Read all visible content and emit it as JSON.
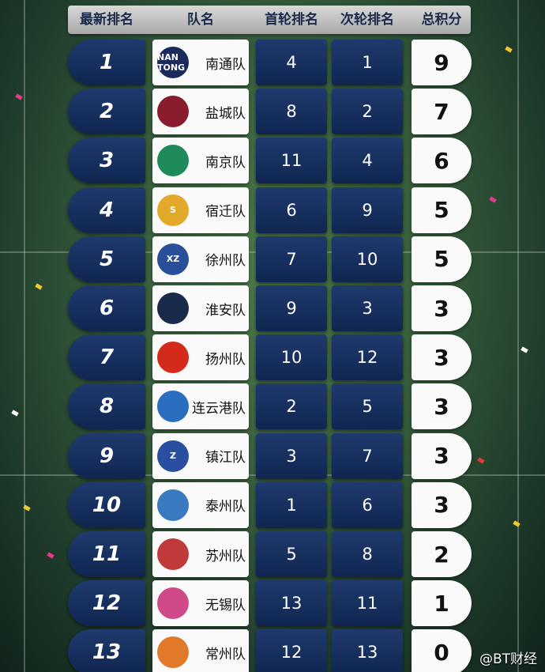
{
  "header": {
    "rank": "最新排名",
    "team": "队名",
    "round1": "首轮排名",
    "round2": "次轮排名",
    "points": "总积分"
  },
  "rows": [
    {
      "rank": "1",
      "team": "南通队",
      "round1": "4",
      "round2": "1",
      "points": "9",
      "logo_color": "#1a2a5c",
      "logo_text": "NAN TONG"
    },
    {
      "rank": "2",
      "team": "盐城队",
      "round1": "8",
      "round2": "2",
      "points": "7",
      "logo_color": "#8a1c2e",
      "logo_text": ""
    },
    {
      "rank": "3",
      "team": "南京队",
      "round1": "11",
      "round2": "4",
      "points": "6",
      "logo_color": "#1f8a5a",
      "logo_text": ""
    },
    {
      "rank": "4",
      "team": "宿迁队",
      "round1": "6",
      "round2": "9",
      "points": "5",
      "logo_color": "#e2a92b",
      "logo_text": "S"
    },
    {
      "rank": "5",
      "team": "徐州队",
      "round1": "7",
      "round2": "10",
      "points": "5",
      "logo_color": "#2a4f9a",
      "logo_text": "XZ"
    },
    {
      "rank": "6",
      "team": "淮安队",
      "round1": "9",
      "round2": "3",
      "points": "3",
      "logo_color": "#1a2a4a",
      "logo_text": ""
    },
    {
      "rank": "7",
      "team": "扬州队",
      "round1": "10",
      "round2": "12",
      "points": "3",
      "logo_color": "#d42a1c",
      "logo_text": ""
    },
    {
      "rank": "8",
      "team": "连云港队",
      "round1": "2",
      "round2": "5",
      "points": "3",
      "logo_color": "#2a6ec0",
      "logo_text": ""
    },
    {
      "rank": "9",
      "team": "镇江队",
      "round1": "3",
      "round2": "7",
      "points": "3",
      "logo_color": "#2a4fa0",
      "logo_text": "Z"
    },
    {
      "rank": "10",
      "team": "泰州队",
      "round1": "1",
      "round2": "6",
      "points": "3",
      "logo_color": "#3a7ac0",
      "logo_text": ""
    },
    {
      "rank": "11",
      "team": "苏州队",
      "round1": "5",
      "round2": "8",
      "points": "2",
      "logo_color": "#c03a3a",
      "logo_text": ""
    },
    {
      "rank": "12",
      "team": "无锡队",
      "round1": "13",
      "round2": "11",
      "points": "1",
      "logo_color": "#d04a8a",
      "logo_text": ""
    },
    {
      "rank": "13",
      "team": "常州队",
      "round1": "12",
      "round2": "13",
      "points": "0",
      "logo_color": "#e07a2a",
      "logo_text": ""
    }
  ],
  "watermark": "@BT财经"
}
